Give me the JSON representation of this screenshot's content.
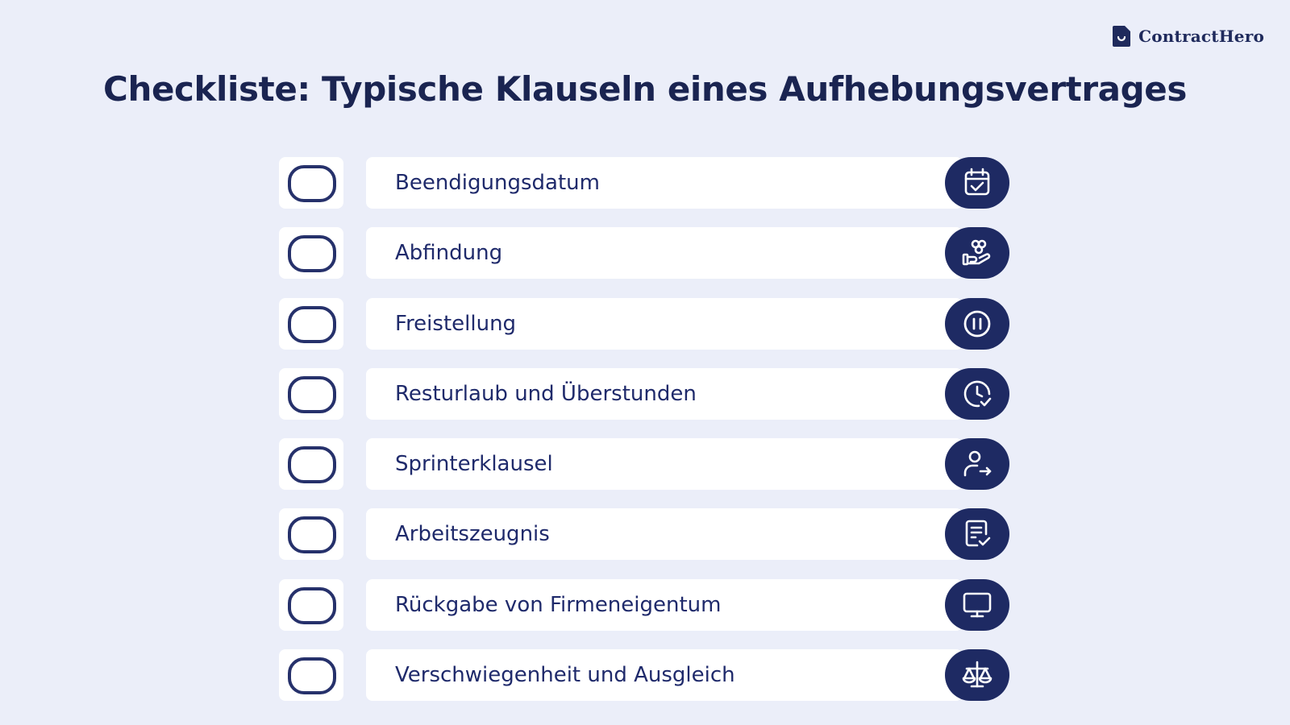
{
  "brand": {
    "name": "ContractHero"
  },
  "title": "Checkliste: Typische Klauseln eines Aufhebungsvertrages",
  "items": [
    {
      "label": "Beendigungsdatum",
      "icon": "calendar-check-icon"
    },
    {
      "label": "Abfindung",
      "icon": "hand-coins-icon"
    },
    {
      "label": "Freistellung",
      "icon": "pause-circle-icon"
    },
    {
      "label": "Resturlaub und Überstunden",
      "icon": "clock-check-icon"
    },
    {
      "label": "Sprinterklausel",
      "icon": "user-arrow-right-icon"
    },
    {
      "label": "Arbeitszeugnis",
      "icon": "document-check-icon"
    },
    {
      "label": "Rückgabe von Firmeneigentum",
      "icon": "monitor-icon"
    },
    {
      "label": "Verschwiegenheit und Ausgleich",
      "icon": "scales-icon"
    }
  ],
  "colors": {
    "background": "#ebeef9",
    "accent": "#1e2a63",
    "text": "#1f2a6b"
  }
}
